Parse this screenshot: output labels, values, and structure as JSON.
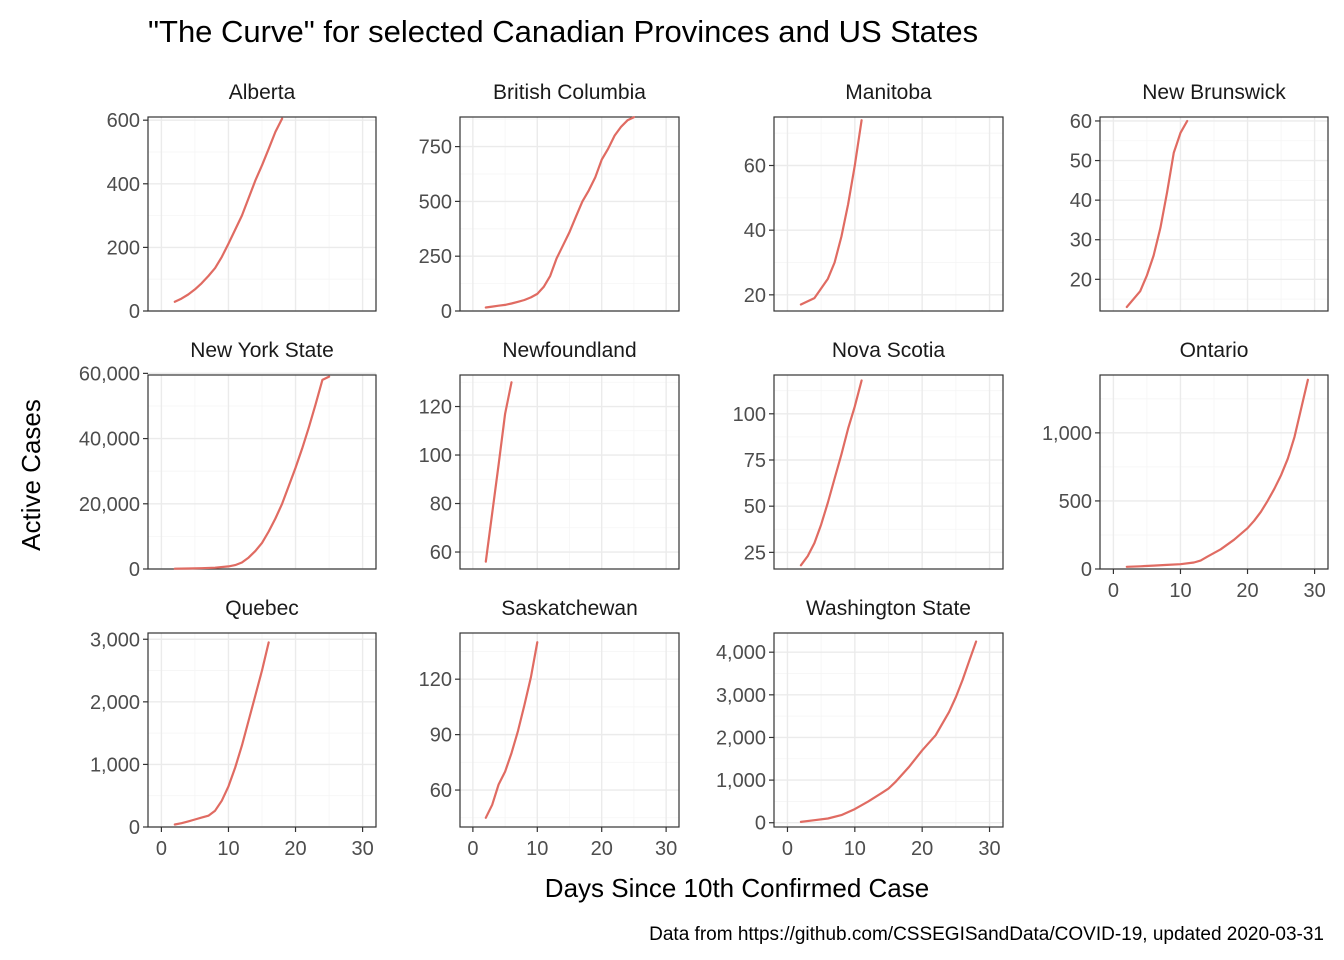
{
  "title": "\"The Curve\" for selected Canadian Provinces and US States",
  "xlabel": "Days Since 10th Confirmed Case",
  "ylabel": "Active Cases",
  "caption": "Data from https://github.com/CSSEGISandData/COVID-19, updated 2020-03-31",
  "colors": {
    "line": "#e06b62",
    "grid": "#ebebeb",
    "frame": "#333333"
  },
  "chart_data": {
    "type": "line",
    "layout": "facet-wrap-4-columns",
    "xlim": [
      -2,
      32
    ],
    "x_ticks": [
      0,
      10,
      20,
      30
    ],
    "grid": true,
    "facets": [
      {
        "name": "Alberta",
        "ylim": [
          0,
          610
        ],
        "y_ticks": [
          0,
          200,
          400,
          600
        ],
        "y_tick_labels": [
          "0",
          "200",
          "400",
          "600"
        ],
        "x": [
          2,
          3,
          4,
          5,
          6,
          7,
          8,
          9,
          10,
          11,
          12,
          13,
          14,
          15,
          16,
          17,
          18
        ],
        "y": [
          29,
          39,
          52,
          68,
          87,
          110,
          135,
          170,
          212,
          256,
          300,
          355,
          410,
          458,
          510,
          563,
          605
        ]
      },
      {
        "name": "British Columbia",
        "ylim": [
          0,
          885
        ],
        "y_ticks": [
          0,
          250,
          500,
          750
        ],
        "y_tick_labels": [
          "0",
          "250",
          "500",
          "750"
        ],
        "x": [
          2,
          3,
          4,
          5,
          6,
          7,
          8,
          9,
          10,
          11,
          12,
          13,
          14,
          15,
          16,
          17,
          18,
          19,
          20,
          21,
          22,
          23,
          24,
          25
        ],
        "y": [
          16,
          20,
          24,
          28,
          34,
          42,
          50,
          62,
          78,
          110,
          160,
          240,
          300,
          360,
          430,
          500,
          550,
          610,
          690,
          740,
          800,
          840,
          870,
          884
        ]
      },
      {
        "name": "Manitoba",
        "ylim": [
          15,
          75
        ],
        "y_ticks": [
          20,
          40,
          60
        ],
        "y_tick_labels": [
          "20",
          "40",
          "60"
        ],
        "x": [
          2,
          4,
          6,
          7,
          8,
          9,
          10,
          11
        ],
        "y": [
          17,
          19,
          25,
          30,
          38,
          48,
          60,
          74
        ]
      },
      {
        "name": "New Brunswick",
        "ylim": [
          12,
          61
        ],
        "y_ticks": [
          20,
          30,
          40,
          50,
          60
        ],
        "y_tick_labels": [
          "20",
          "30",
          "40",
          "50",
          "60"
        ],
        "x": [
          2,
          4,
          5,
          6,
          7,
          8,
          9,
          10,
          11
        ],
        "y": [
          13,
          17,
          21,
          26,
          33,
          42,
          52,
          57,
          60
        ]
      },
      {
        "name": "New York State",
        "ylim": [
          0,
          59500
        ],
        "y_ticks": [
          0,
          20000,
          40000,
          60000
        ],
        "y_tick_labels": [
          "0",
          "20,000",
          "40,000",
          "60,000"
        ],
        "x": [
          2,
          4,
          6,
          8,
          10,
          11,
          12,
          13,
          14,
          15,
          16,
          17,
          18,
          19,
          20,
          21,
          22,
          23,
          24,
          25
        ],
        "y": [
          100,
          150,
          250,
          400,
          800,
          1200,
          2000,
          3500,
          5500,
          8000,
          11500,
          15500,
          20000,
          25500,
          31000,
          37000,
          43500,
          50500,
          58000,
          59000
        ]
      },
      {
        "name": "Newfoundland",
        "ylim": [
          53,
          133
        ],
        "y_ticks": [
          60,
          80,
          100,
          120
        ],
        "y_tick_labels": [
          "60",
          "80",
          "100",
          "120"
        ],
        "x": [
          2,
          3,
          4,
          5,
          6
        ],
        "y": [
          56,
          76,
          96,
          117,
          130
        ]
      },
      {
        "name": "Nova Scotia",
        "ylim": [
          16,
          121
        ],
        "y_ticks": [
          25,
          50,
          75,
          100
        ],
        "y_tick_labels": [
          "25",
          "50",
          "75",
          "100"
        ],
        "x": [
          2,
          3,
          4,
          5,
          6,
          7,
          8,
          9,
          10,
          11
        ],
        "y": [
          18,
          23,
          30,
          40,
          52,
          65,
          78,
          92,
          104,
          118
        ]
      },
      {
        "name": "Ontario",
        "ylim": [
          0,
          1425
        ],
        "y_ticks": [
          0,
          500,
          1000
        ],
        "y_tick_labels": [
          "0",
          "500",
          "1,000"
        ],
        "x": [
          2,
          4,
          6,
          8,
          10,
          12,
          13,
          14,
          16,
          18,
          20,
          21,
          22,
          23,
          24,
          25,
          26,
          27,
          28,
          29
        ],
        "y": [
          16,
          20,
          25,
          30,
          35,
          48,
          62,
          90,
          145,
          215,
          300,
          355,
          420,
          500,
          590,
          690,
          810,
          970,
          1180,
          1390
        ]
      },
      {
        "name": "Quebec",
        "ylim": [
          0,
          3100
        ],
        "y_ticks": [
          0,
          1000,
          2000,
          3000
        ],
        "y_tick_labels": [
          "0",
          "1,000",
          "2,000",
          "3,000"
        ],
        "x": [
          2,
          3,
          4,
          5,
          6,
          7,
          8,
          9,
          10,
          11,
          12,
          13,
          14,
          15,
          16
        ],
        "y": [
          40,
          60,
          90,
          120,
          150,
          180,
          260,
          420,
          650,
          950,
          1300,
          1700,
          2100,
          2500,
          2950
        ]
      },
      {
        "name": "Saskatchewan",
        "ylim": [
          40,
          145
        ],
        "y_ticks": [
          60,
          90,
          120
        ],
        "y_tick_labels": [
          "60",
          "90",
          "120"
        ],
        "x": [
          2,
          3,
          4,
          5,
          6,
          7,
          8,
          9,
          10
        ],
        "y": [
          45,
          52,
          63,
          70,
          80,
          92,
          106,
          121,
          140
        ]
      },
      {
        "name": "Washington State",
        "ylim": [
          -100,
          4450
        ],
        "y_ticks": [
          0,
          1000,
          2000,
          3000,
          4000
        ],
        "y_tick_labels": [
          "0",
          "1,000",
          "2,000",
          "3,000",
          "4,000"
        ],
        "x": [
          2,
          4,
          6,
          8,
          10,
          12,
          14,
          15,
          16,
          18,
          20,
          22,
          24,
          25,
          26,
          27,
          28
        ],
        "y": [
          20,
          60,
          100,
          180,
          320,
          500,
          700,
          800,
          950,
          1300,
          1700,
          2050,
          2600,
          2950,
          3350,
          3800,
          4250
        ]
      }
    ]
  }
}
